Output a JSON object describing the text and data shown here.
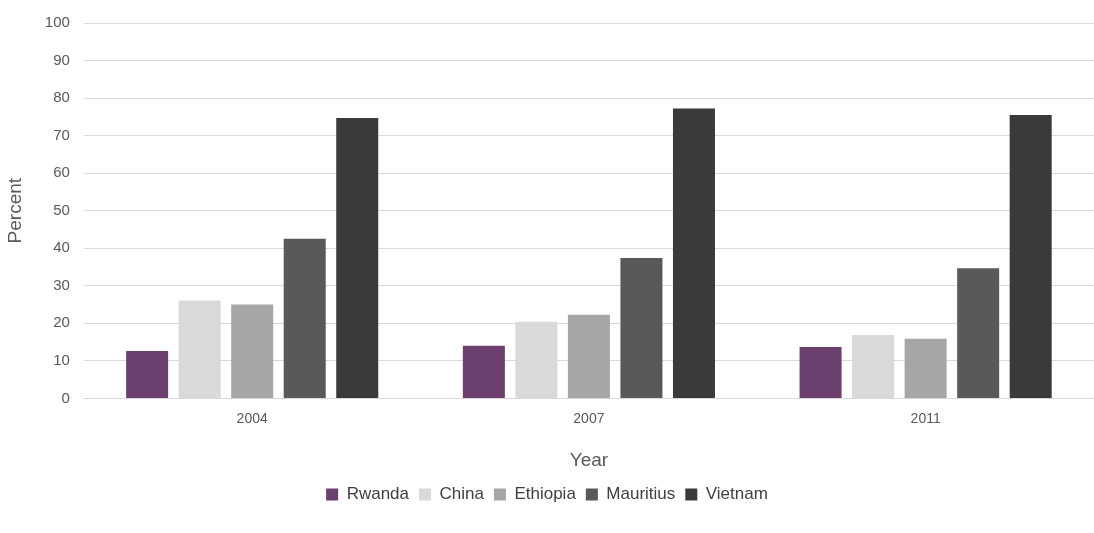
{
  "chart_data": {
    "type": "bar",
    "xlabel": "Year",
    "ylabel": "Percent",
    "categories": [
      "2004",
      "2007",
      "2011"
    ],
    "series": [
      {
        "name": "Rwanda",
        "color": "#6b3f6e",
        "values": [
          12.6,
          14.0,
          13.7
        ]
      },
      {
        "name": "China",
        "color": "#d9d9d9",
        "values": [
          26.1,
          20.4,
          16.9
        ]
      },
      {
        "name": "Ethiopia",
        "color": "#a6a6a6",
        "values": [
          25.0,
          22.3,
          15.9
        ]
      },
      {
        "name": "Mauritius",
        "color": "#595959",
        "values": [
          42.5,
          37.4,
          34.7
        ]
      },
      {
        "name": "Vietnam",
        "color": "#3a3a3a",
        "values": [
          74.7,
          77.2,
          75.5
        ]
      }
    ],
    "ylim": [
      0,
      100
    ],
    "yticks": [
      0,
      10,
      20,
      30,
      40,
      50,
      60,
      70,
      80,
      90,
      100
    ],
    "grid": "y",
    "legend": "bottom"
  }
}
